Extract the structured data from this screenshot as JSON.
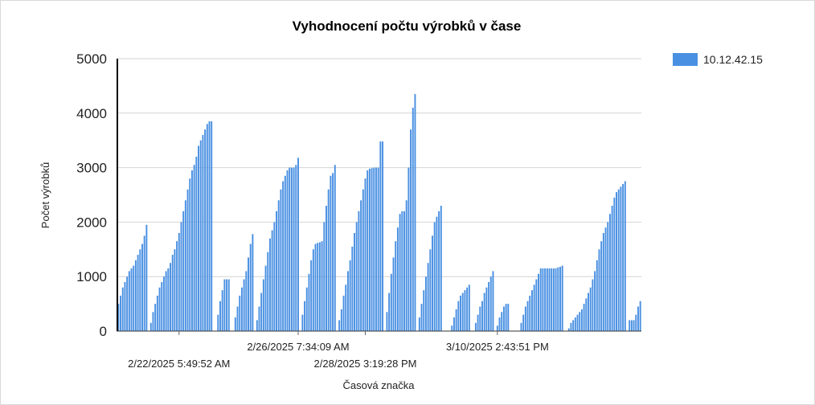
{
  "chart_data": {
    "type": "bar",
    "title": "Vyhodnocení počtu výrobků v čase",
    "xlabel": "Časová značka",
    "ylabel": "Počet výrobků",
    "ylim": [
      0,
      5000
    ],
    "yticks": [
      "0",
      "1000",
      "2000",
      "3000",
      "4000",
      "5000"
    ],
    "grid": true,
    "legend_position": "top-right",
    "x_tick_labels": [
      {
        "label": "2/22/2025 5:49:52 AM",
        "index": 28,
        "row": 2
      },
      {
        "label": "2/26/2025 7:34:09 AM",
        "index": 83,
        "row": 1
      },
      {
        "label": "2/28/2025 3:19:28 PM",
        "index": 114,
        "row": 2
      },
      {
        "label": "3/10/2025 2:43:51 PM",
        "index": 175,
        "row": 1
      }
    ],
    "series": [
      {
        "name": "10.12.42.15",
        "color": "#4a90e2",
        "values": [
          500,
          650,
          800,
          900,
          1000,
          1100,
          1150,
          1200,
          1300,
          1400,
          1500,
          1600,
          1750,
          1950,
          0,
          150,
          350,
          500,
          650,
          800,
          900,
          1000,
          1100,
          1150,
          1250,
          1400,
          1500,
          1650,
          1800,
          2000,
          2200,
          2400,
          2600,
          2800,
          2950,
          3050,
          3200,
          3400,
          3500,
          3600,
          3700,
          3800,
          3850,
          3850,
          0,
          0,
          300,
          550,
          750,
          950,
          950,
          950,
          0,
          0,
          250,
          450,
          650,
          800,
          950,
          1100,
          1350,
          1600,
          1780,
          0,
          200,
          450,
          700,
          950,
          1200,
          1450,
          1700,
          1850,
          2000,
          2200,
          2400,
          2600,
          2750,
          2850,
          2950,
          3000,
          3000,
          3000,
          3050,
          3180,
          0,
          300,
          550,
          800,
          1050,
          1300,
          1500,
          1600,
          1620,
          1630,
          1650,
          2000,
          2300,
          2600,
          2850,
          2900,
          3050,
          0,
          200,
          400,
          650,
          850,
          1100,
          1300,
          1550,
          1800,
          2000,
          2200,
          2400,
          2600,
          2800,
          2950,
          2980,
          2990,
          3000,
          3000,
          3000,
          3480,
          3480,
          0,
          350,
          700,
          1050,
          1350,
          1650,
          1900,
          2150,
          2200,
          2200,
          2400,
          3000,
          3700,
          4100,
          4350,
          0,
          250,
          500,
          750,
          1000,
          1250,
          1500,
          1750,
          2000,
          2100,
          2200,
          2300,
          0,
          0,
          0,
          0,
          100,
          250,
          400,
          550,
          650,
          700,
          750,
          800,
          850,
          0,
          0,
          150,
          300,
          450,
          550,
          700,
          800,
          900,
          1000,
          1100,
          0,
          100,
          250,
          350,
          450,
          500,
          500,
          0,
          0,
          0,
          0,
          0,
          150,
          300,
          450,
          550,
          650,
          750,
          850,
          950,
          1050,
          1150,
          1150,
          1150,
          1150,
          1150,
          1150,
          1150,
          1150,
          1170,
          1180,
          1200,
          0,
          0,
          50,
          150,
          200,
          250,
          300,
          350,
          400,
          500,
          600,
          700,
          800,
          950,
          1100,
          1300,
          1500,
          1650,
          1800,
          1900,
          2000,
          2150,
          2300,
          2450,
          2550,
          2600,
          2650,
          2700,
          2750,
          0,
          200,
          200,
          200,
          300,
          450,
          550
        ]
      }
    ]
  }
}
